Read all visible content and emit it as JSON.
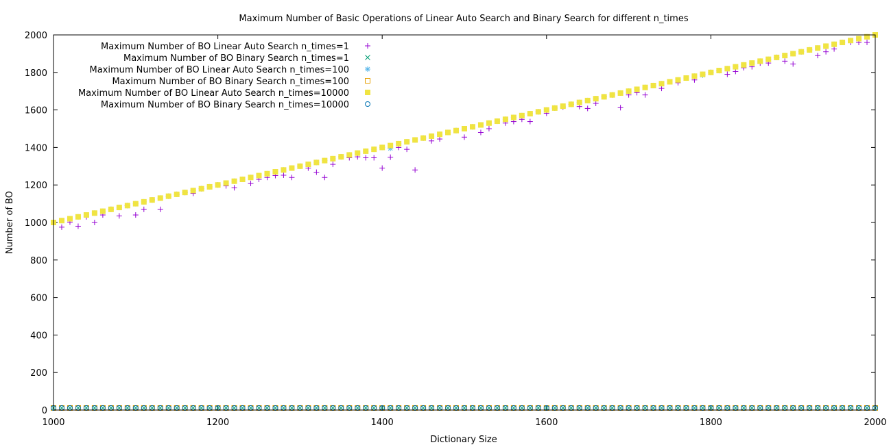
{
  "chart_data": {
    "type": "scatter",
    "title": "Maximum Number of Basic Operations of Linear Auto Search and Binary Search for different n_times",
    "xlabel": "Dictionary Size",
    "ylabel": "Number of BO",
    "xlim": [
      1000,
      2000
    ],
    "ylim": [
      0,
      2000
    ],
    "xticks": [
      "1000",
      "1200",
      "1400",
      "1600",
      "1800",
      "2000"
    ],
    "yticks": [
      "0",
      "200",
      "400",
      "600",
      "800",
      "1000",
      "1200",
      "1400",
      "1600",
      "1800",
      "2000"
    ],
    "legend_position": "top-left",
    "grid": false,
    "x": [
      1000,
      1010,
      1020,
      1030,
      1040,
      1050,
      1060,
      1070,
      1080,
      1090,
      1100,
      1110,
      1120,
      1130,
      1140,
      1150,
      1160,
      1170,
      1180,
      1190,
      1200,
      1210,
      1220,
      1230,
      1240,
      1250,
      1260,
      1270,
      1280,
      1290,
      1300,
      1310,
      1320,
      1330,
      1340,
      1350,
      1360,
      1370,
      1380,
      1390,
      1400,
      1410,
      1420,
      1430,
      1440,
      1450,
      1460,
      1470,
      1480,
      1490,
      1500,
      1510,
      1520,
      1530,
      1540,
      1550,
      1560,
      1570,
      1580,
      1590,
      1600,
      1610,
      1620,
      1630,
      1640,
      1650,
      1660,
      1670,
      1680,
      1690,
      1700,
      1710,
      1720,
      1730,
      1740,
      1750,
      1760,
      1770,
      1780,
      1790,
      1800,
      1810,
      1820,
      1830,
      1840,
      1850,
      1860,
      1870,
      1880,
      1890,
      1900,
      1910,
      1920,
      1930,
      1940,
      1950,
      1960,
      1970,
      1980,
      1990,
      2000
    ],
    "series": [
      {
        "name": "Maximum Number of BO Linear Auto Search n_times=1",
        "marker": "plus",
        "color": "#9400d3",
        "values": [
          1000,
          975,
          1002,
          980,
          1030,
          1000,
          1040,
          1070,
          1035,
          1090,
          1040,
          1070,
          1120,
          1070,
          1140,
          1150,
          1160,
          1155,
          1180,
          1190,
          1200,
          1195,
          1185,
          1230,
          1208,
          1230,
          1240,
          1250,
          1252,
          1240,
          1300,
          1290,
          1268,
          1240,
          1310,
          1350,
          1345,
          1350,
          1345,
          1345,
          1290,
          1348,
          1400,
          1390,
          1280,
          1450,
          1435,
          1445,
          1480,
          1490,
          1455,
          1510,
          1480,
          1500,
          1540,
          1530,
          1538,
          1550,
          1538,
          1590,
          1582,
          1610,
          1615,
          1630,
          1618,
          1608,
          1635,
          1670,
          1680,
          1612,
          1680,
          1692,
          1680,
          1730,
          1715,
          1750,
          1745,
          1770,
          1760,
          1790,
          1800,
          1810,
          1790,
          1805,
          1825,
          1830,
          1850,
          1850,
          1880,
          1860,
          1845,
          1910,
          1920,
          1890,
          1910,
          1925,
          1960,
          1960,
          1960,
          1960,
          2000
        ]
      },
      {
        "name": "Maximum Number of BO Binary Search n_times=1",
        "marker": "cross",
        "color": "#009e73",
        "values": [
          11,
          11,
          11,
          11,
          11,
          11,
          11,
          11,
          11,
          11,
          11,
          11,
          11,
          11,
          11,
          11,
          11,
          11,
          11,
          11,
          11,
          11,
          11,
          11,
          11,
          11,
          11,
          11,
          11,
          11,
          11,
          11,
          11,
          11,
          11,
          11,
          11,
          11,
          11,
          11,
          11,
          11,
          11,
          11,
          11,
          11,
          11,
          11,
          11,
          11,
          11,
          11,
          11,
          11,
          11,
          11,
          11,
          11,
          11,
          11,
          11,
          11,
          11,
          11,
          11,
          11,
          11,
          11,
          11,
          11,
          11,
          11,
          11,
          11,
          11,
          11,
          11,
          11,
          11,
          11,
          11,
          11,
          11,
          11,
          11,
          11,
          11,
          11,
          11,
          11,
          11,
          11,
          11,
          11,
          11,
          11,
          11,
          11,
          11,
          11,
          11
        ]
      },
      {
        "name": "Maximum Number of BO Linear Auto Search n_times=100",
        "marker": "star",
        "color": "#56b4e9",
        "values": [
          1000,
          1010,
          1020,
          1030,
          1040,
          1050,
          1060,
          1070,
          1080,
          1090,
          1100,
          1110,
          1120,
          1130,
          1140,
          1150,
          1160,
          1170,
          1180,
          1190,
          1200,
          1210,
          1220,
          1230,
          1240,
          1250,
          1260,
          1270,
          1280,
          1290,
          1300,
          1310,
          1320,
          1330,
          1340,
          1350,
          1360,
          1370,
          1380,
          1390,
          1400,
          1395,
          1420,
          1430,
          1440,
          1450,
          1460,
          1470,
          1480,
          1490,
          1500,
          1510,
          1520,
          1530,
          1540,
          1550,
          1560,
          1570,
          1580,
          1590,
          1600,
          1610,
          1620,
          1630,
          1640,
          1650,
          1660,
          1670,
          1680,
          1690,
          1700,
          1710,
          1720,
          1730,
          1740,
          1750,
          1760,
          1770,
          1780,
          1785,
          1800,
          1810,
          1820,
          1830,
          1840,
          1850,
          1860,
          1870,
          1880,
          1890,
          1900,
          1910,
          1920,
          1930,
          1940,
          1950,
          1960,
          1970,
          1980,
          1990,
          2000
        ]
      },
      {
        "name": "Maximum Number of BO Binary Search n_times=100",
        "marker": "square-open",
        "color": "#e69f00",
        "values": [
          11,
          11,
          11,
          11,
          11,
          11,
          11,
          11,
          11,
          11,
          11,
          11,
          11,
          11,
          11,
          11,
          11,
          11,
          11,
          11,
          11,
          11,
          11,
          11,
          11,
          11,
          11,
          11,
          11,
          11,
          11,
          11,
          11,
          11,
          11,
          11,
          11,
          11,
          11,
          11,
          11,
          11,
          11,
          11,
          11,
          11,
          11,
          11,
          11,
          11,
          11,
          11,
          11,
          11,
          11,
          11,
          11,
          11,
          11,
          11,
          11,
          11,
          11,
          11,
          11,
          11,
          11,
          11,
          11,
          11,
          11,
          11,
          11,
          11,
          11,
          11,
          11,
          11,
          11,
          11,
          11,
          11,
          11,
          11,
          11,
          11,
          11,
          11,
          11,
          11,
          11,
          11,
          11,
          11,
          11,
          11,
          11,
          11,
          11,
          11,
          11
        ]
      },
      {
        "name": "Maximum Number of BO Linear Auto Search n_times=10000",
        "marker": "square-filled",
        "color": "#f0e442",
        "values": [
          1000,
          1010,
          1020,
          1030,
          1040,
          1050,
          1060,
          1070,
          1080,
          1090,
          1100,
          1110,
          1120,
          1130,
          1140,
          1150,
          1160,
          1170,
          1180,
          1190,
          1200,
          1210,
          1220,
          1230,
          1240,
          1250,
          1260,
          1270,
          1280,
          1290,
          1300,
          1310,
          1320,
          1330,
          1340,
          1350,
          1360,
          1370,
          1380,
          1390,
          1400,
          1410,
          1420,
          1430,
          1440,
          1450,
          1460,
          1470,
          1480,
          1490,
          1500,
          1510,
          1520,
          1530,
          1540,
          1550,
          1560,
          1570,
          1580,
          1590,
          1600,
          1610,
          1620,
          1630,
          1640,
          1650,
          1660,
          1670,
          1680,
          1690,
          1700,
          1710,
          1720,
          1730,
          1740,
          1750,
          1760,
          1770,
          1780,
          1790,
          1800,
          1810,
          1820,
          1830,
          1840,
          1850,
          1860,
          1870,
          1880,
          1890,
          1900,
          1910,
          1920,
          1930,
          1940,
          1950,
          1960,
          1970,
          1980,
          1990,
          2000
        ]
      },
      {
        "name": "Maximum Number of BO Binary Search n_times=10000",
        "marker": "circle-open",
        "color": "#0072b2",
        "values": [
          11,
          11,
          11,
          11,
          11,
          11,
          11,
          11,
          11,
          11,
          11,
          11,
          11,
          11,
          11,
          11,
          11,
          11,
          11,
          11,
          11,
          11,
          11,
          11,
          11,
          11,
          11,
          11,
          11,
          11,
          11,
          11,
          11,
          11,
          11,
          11,
          11,
          11,
          11,
          11,
          11,
          11,
          11,
          11,
          11,
          11,
          11,
          11,
          11,
          11,
          11,
          11,
          11,
          11,
          11,
          11,
          11,
          11,
          11,
          11,
          11,
          11,
          11,
          11,
          11,
          11,
          11,
          11,
          11,
          11,
          11,
          11,
          11,
          11,
          11,
          11,
          11,
          11,
          11,
          11,
          11,
          11,
          11,
          11,
          11,
          11,
          11,
          11,
          11,
          11,
          11,
          11,
          11,
          11,
          11,
          11,
          11,
          11,
          11,
          11,
          11
        ]
      }
    ]
  }
}
